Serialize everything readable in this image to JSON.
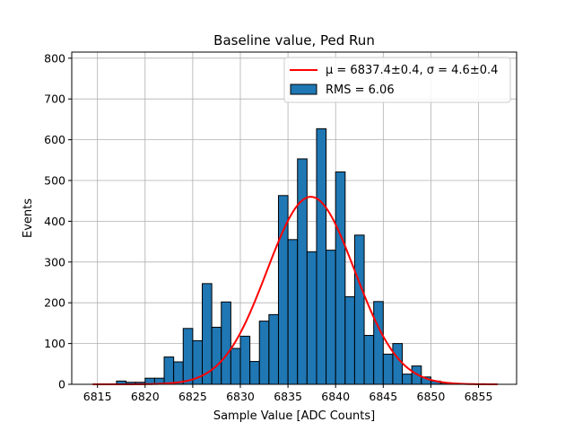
{
  "chart_data": {
    "type": "bar",
    "title": "Baseline value, Ped Run",
    "xlabel": "Sample Value [ADC Counts]",
    "ylabel": "Events",
    "xlim": [
      6812.3,
      6859.0
    ],
    "ylim": [
      0,
      815
    ],
    "xticks": [
      6815,
      6820,
      6825,
      6830,
      6835,
      6840,
      6845,
      6850,
      6855
    ],
    "yticks": [
      0,
      100,
      200,
      300,
      400,
      500,
      600,
      700,
      800
    ],
    "grid": true,
    "histogram": {
      "name": "RMS = 6.06",
      "color": "#1f77b4",
      "bin_width": 1.0,
      "bins": [
        {
          "x": 6817.5,
          "count": 8
        },
        {
          "x": 6818.5,
          "count": 5
        },
        {
          "x": 6819.5,
          "count": 5
        },
        {
          "x": 6820.5,
          "count": 15
        },
        {
          "x": 6821.5,
          "count": 15
        },
        {
          "x": 6822.5,
          "count": 67
        },
        {
          "x": 6823.5,
          "count": 55
        },
        {
          "x": 6824.5,
          "count": 137
        },
        {
          "x": 6825.5,
          "count": 107
        },
        {
          "x": 6826.5,
          "count": 247
        },
        {
          "x": 6827.5,
          "count": 140
        },
        {
          "x": 6828.5,
          "count": 202
        },
        {
          "x": 6829.5,
          "count": 88
        },
        {
          "x": 6830.5,
          "count": 118
        },
        {
          "x": 6831.5,
          "count": 56
        },
        {
          "x": 6832.5,
          "count": 155
        },
        {
          "x": 6833.5,
          "count": 171
        },
        {
          "x": 6834.5,
          "count": 463
        },
        {
          "x": 6835.5,
          "count": 355
        },
        {
          "x": 6836.5,
          "count": 553
        },
        {
          "x": 6837.5,
          "count": 325
        },
        {
          "x": 6838.5,
          "count": 627
        },
        {
          "x": 6839.5,
          "count": 329
        },
        {
          "x": 6840.5,
          "count": 521
        },
        {
          "x": 6841.5,
          "count": 215
        },
        {
          "x": 6842.5,
          "count": 366
        },
        {
          "x": 6843.5,
          "count": 120
        },
        {
          "x": 6844.5,
          "count": 203
        },
        {
          "x": 6845.5,
          "count": 74
        },
        {
          "x": 6846.5,
          "count": 100
        },
        {
          "x": 6847.5,
          "count": 25
        },
        {
          "x": 6848.5,
          "count": 45
        },
        {
          "x": 6849.5,
          "count": 18
        },
        {
          "x": 6850.5,
          "count": 8
        },
        {
          "x": 6851.5,
          "count": 3
        }
      ]
    },
    "fit": {
      "type": "gaussian",
      "color": "#ff0000",
      "mu": 6837.4,
      "sigma": 4.6,
      "amplitude": 460,
      "x_range": [
        6814.5,
        6857.0
      ]
    },
    "legend": {
      "position": "top-right",
      "entries": [
        {
          "label": "μ = 6837.4±0.4, σ = 4.6±0.4",
          "kind": "line",
          "color": "#ff0000"
        },
        {
          "label": "RMS = 6.06",
          "kind": "patch",
          "color": "#1f77b4"
        }
      ]
    }
  }
}
